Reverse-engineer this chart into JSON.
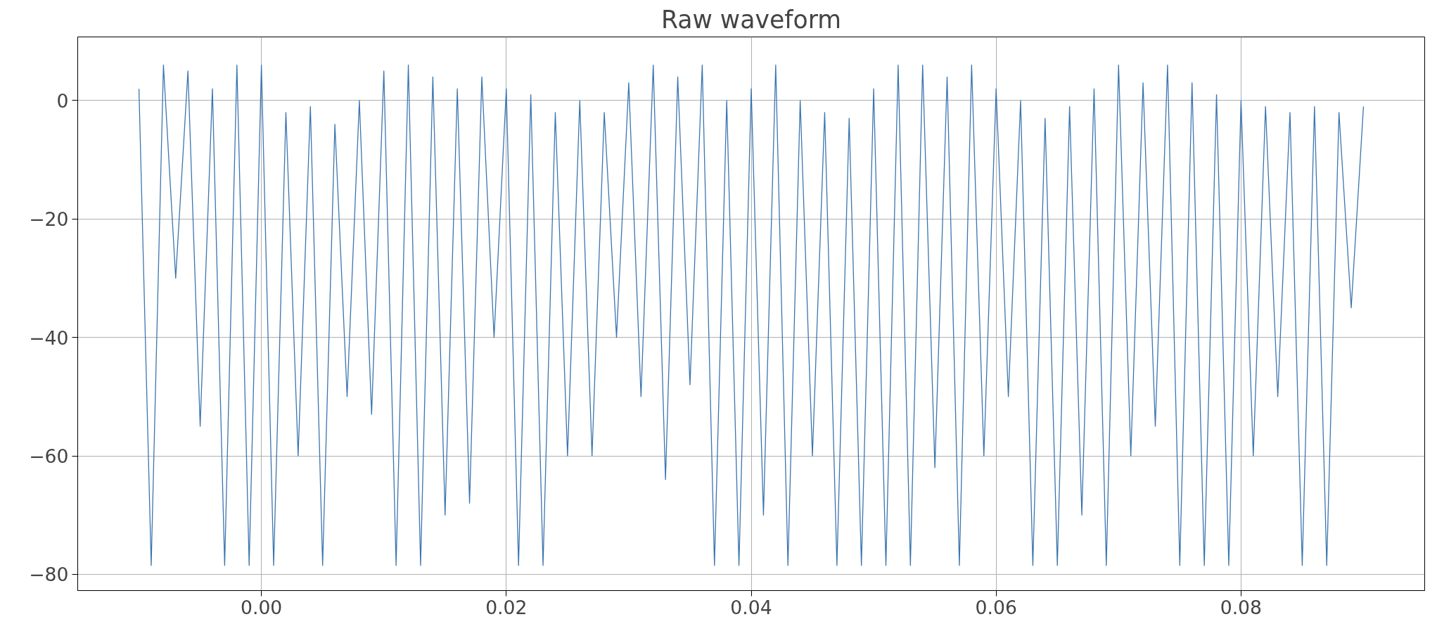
{
  "chart_data": {
    "type": "line",
    "title": "Raw waveform",
    "x": [
      -0.01,
      -0.009,
      -0.008,
      -0.007,
      -0.006,
      -0.005,
      -0.004,
      -0.003,
      -0.002,
      -0.001,
      0.0,
      0.001,
      0.002,
      0.003,
      0.004,
      0.005,
      0.006,
      0.007,
      0.008,
      0.009,
      0.01,
      0.011,
      0.012,
      0.013,
      0.014,
      0.015,
      0.016,
      0.017,
      0.018,
      0.019,
      0.02,
      0.021,
      0.022,
      0.023,
      0.024,
      0.025,
      0.026,
      0.027,
      0.028,
      0.029,
      0.03,
      0.031,
      0.032,
      0.033,
      0.034,
      0.035,
      0.036,
      0.037,
      0.038,
      0.039,
      0.04,
      0.041,
      0.042,
      0.043,
      0.044,
      0.045,
      0.046,
      0.047,
      0.048,
      0.049,
      0.05,
      0.051,
      0.052,
      0.053,
      0.054,
      0.055,
      0.056,
      0.057,
      0.058,
      0.059,
      0.06,
      0.061,
      0.062,
      0.063,
      0.064,
      0.065,
      0.066,
      0.067,
      0.068,
      0.069,
      0.07,
      0.071,
      0.072,
      0.073,
      0.074,
      0.075,
      0.076,
      0.077,
      0.078,
      0.079,
      0.08,
      0.081,
      0.082,
      0.083,
      0.084,
      0.085,
      0.086,
      0.087,
      0.088,
      0.089,
      0.09
    ],
    "series": [
      {
        "color": "#3b75af",
        "values": [
          2,
          -78.5,
          6,
          -30,
          5,
          -55,
          2,
          -78.5,
          6,
          -78.5,
          6,
          -78.5,
          -2,
          -60,
          -1,
          -78.5,
          -4,
          -50,
          0,
          -53,
          5,
          -78.5,
          6,
          -78.5,
          4,
          -70,
          2,
          -68,
          4,
          -40,
          2,
          -78.5,
          1,
          -78.5,
          -2,
          -60,
          0,
          -60,
          -2,
          -40,
          3,
          -50,
          6,
          -64,
          4,
          -48,
          6,
          -78.5,
          0,
          -78.5,
          2,
          -70,
          6,
          -78.5,
          0,
          -60,
          -2,
          -78.5,
          -3,
          -78.5,
          2,
          -78.5,
          6,
          -78.5,
          6,
          -62,
          4,
          -78.5,
          6,
          -60,
          2,
          -50,
          0,
          -78.5,
          -3,
          -78.5,
          -1,
          -70,
          2,
          -78.5,
          6,
          -60,
          3,
          -55,
          6,
          -78.5,
          3,
          -78.5,
          1,
          -78.5,
          0,
          -60,
          -1,
          -50,
          -2,
          -78.5,
          -1,
          -78.5,
          -2,
          -35,
          -1
        ]
      }
    ],
    "xlim": [
      -0.015,
      0.095
    ],
    "ylim": [
      -82.75,
      10.75
    ],
    "xticks": [
      {
        "value": 0,
        "label": "0.00"
      },
      {
        "value": 0.02,
        "label": "0.02"
      },
      {
        "value": 0.04,
        "label": "0.04"
      },
      {
        "value": 0.06,
        "label": "0.06"
      },
      {
        "value": 0.08,
        "label": "0.08"
      }
    ],
    "yticks": [
      {
        "value": -80,
        "label": "−80"
      },
      {
        "value": -60,
        "label": "−60"
      },
      {
        "value": -40,
        "label": "−40"
      },
      {
        "value": -20,
        "label": "−20"
      },
      0
    ],
    "grid": true
  }
}
